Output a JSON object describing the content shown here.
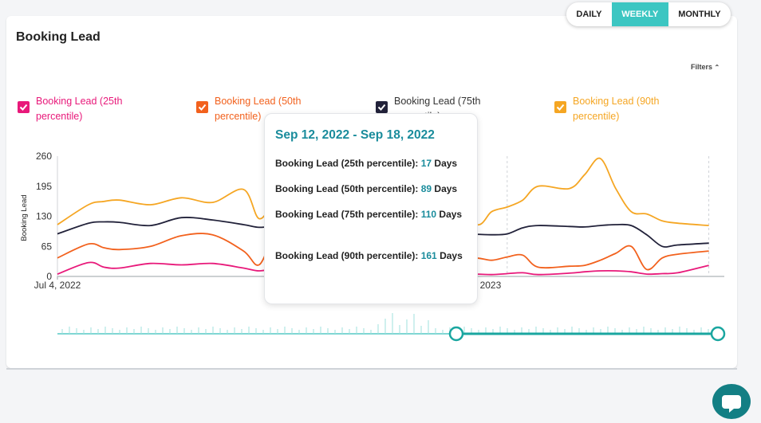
{
  "header": {
    "title": "Booking Lead",
    "filters_label": "Filters"
  },
  "range_toggle": {
    "options": [
      "DAILY",
      "WEEKLY",
      "MONTHLY"
    ],
    "selected": "WEEKLY"
  },
  "legend": [
    {
      "label": "Booking Lead (25th percentile)",
      "color": "#e8197a",
      "checked": true
    },
    {
      "label": "Booking Lead (50th percentile)",
      "color": "#f2611d",
      "checked": true
    },
    {
      "label": "Booking Lead (75th percentile)",
      "color": "#22223a",
      "checked": true
    },
    {
      "label": "Booking Lead (90th percentile)",
      "color": "#f5a623",
      "checked": true
    }
  ],
  "tooltip": {
    "title": "Sep 12, 2022 - Sep 18, 2022",
    "rows": [
      {
        "label": "Booking Lead (25th percentile):",
        "value": "17",
        "unit": "Days"
      },
      {
        "label": "Booking Lead (50th percentile):",
        "value": "89",
        "unit": "Days"
      },
      {
        "label": "Booking Lead (75th percentile):",
        "value": "110",
        "unit": "Days"
      },
      {
        "label": "Booking Lead (90th percentile):",
        "value": "161",
        "unit": "Days"
      }
    ]
  },
  "chart_data": {
    "type": "line",
    "ylabel": "Booking Lead",
    "ylim": [
      0,
      260
    ],
    "yticks": [
      0,
      65,
      130,
      195,
      260
    ],
    "x_tick_labels": [
      {
        "label": "Jul 4, 2022",
        "week": 0
      },
      {
        "label": "Jan 9, 2023",
        "week": 27
      }
    ],
    "x_weeks": [
      0,
      2,
      3,
      4,
      6,
      8,
      10,
      12,
      13,
      14,
      15,
      16,
      17,
      18,
      19,
      20,
      21,
      23,
      24,
      25,
      27,
      28,
      29,
      30,
      31,
      33,
      34,
      35,
      36,
      37,
      38,
      39,
      40,
      42
    ],
    "series": [
      {
        "name": "Booking Lead (25th percentile)",
        "color": "#e8197a",
        "values": [
          5,
          30,
          20,
          18,
          28,
          25,
          28,
          18,
          12,
          17,
          20,
          18,
          16,
          14,
          15,
          13,
          8,
          7,
          6,
          5,
          5,
          4,
          6,
          8,
          4,
          7,
          10,
          12,
          12,
          10,
          5,
          6,
          8,
          24
        ]
      },
      {
        "name": "Booking Lead (50th percentile)",
        "color": "#f2611d",
        "values": [
          40,
          70,
          62,
          58,
          65,
          88,
          90,
          55,
          25,
          89,
          90,
          86,
          78,
          72,
          60,
          52,
          48,
          43,
          42,
          42,
          40,
          35,
          42,
          46,
          20,
          22,
          24,
          35,
          50,
          65,
          15,
          40,
          48,
          55
        ]
      },
      {
        "name": "Booking Lead (75th percentile)",
        "color": "#22223a",
        "values": [
          92,
          115,
          118,
          117,
          110,
          127,
          122,
          112,
          106,
          110,
          115,
          113,
          110,
          108,
          104,
          100,
          98,
          96,
          93,
          92,
          91,
          90,
          92,
          105,
          110,
          108,
          107,
          110,
          112,
          110,
          90,
          65,
          68,
          72
        ]
      },
      {
        "name": "Booking Lead (90th percentile)",
        "color": "#f5a623",
        "values": [
          112,
          155,
          162,
          165,
          155,
          170,
          160,
          188,
          125,
          161,
          170,
          165,
          160,
          155,
          158,
          170,
          172,
          160,
          150,
          165,
          112,
          140,
          150,
          165,
          195,
          190,
          220,
          255,
          190,
          140,
          135,
          120,
          115,
          110
        ]
      }
    ],
    "grid": false,
    "legend_position": "top"
  }
}
